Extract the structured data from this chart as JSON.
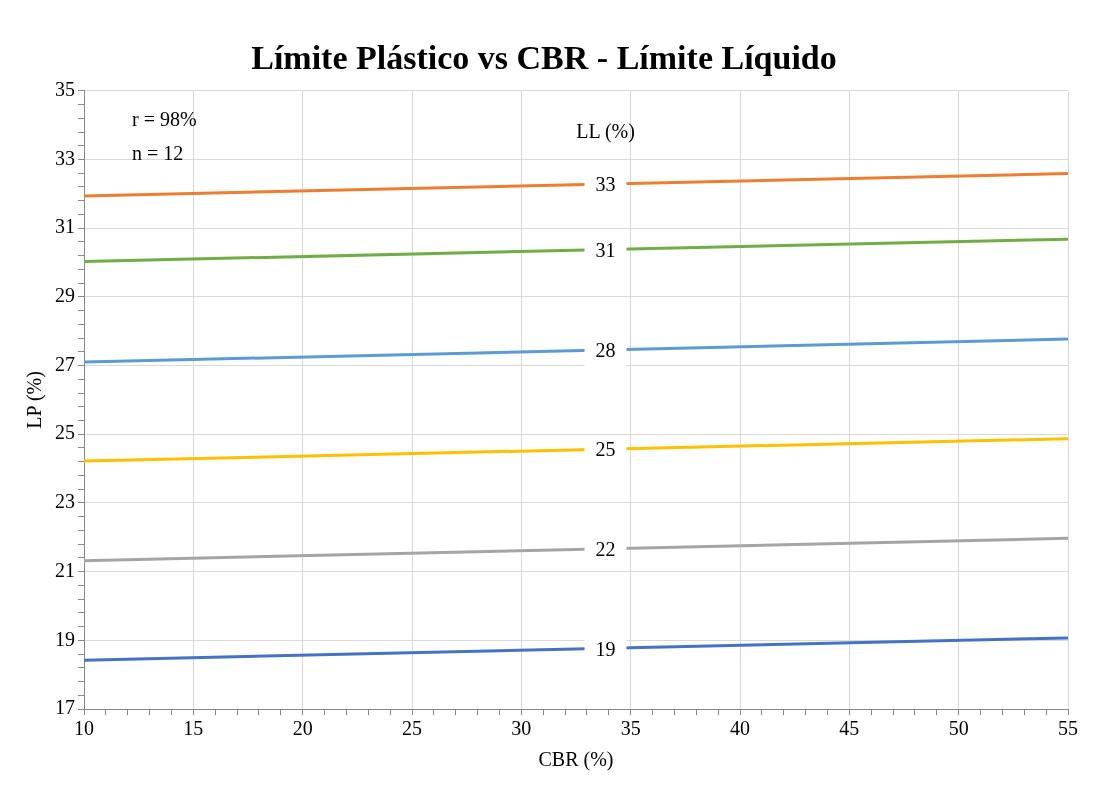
{
  "chart_data": {
    "type": "line",
    "title": "Límite Plástico vs CBR - Límite Líquido",
    "xlabel": "CBR (%)",
    "ylabel": "LP (%)",
    "legend_title": "LL (%)",
    "annotations": [
      "r = 98%",
      "n = 12"
    ],
    "x": [
      10,
      55
    ],
    "series": [
      {
        "name": "33",
        "color": "#ed7d31",
        "values": [
          31.94,
          32.59
        ]
      },
      {
        "name": "31",
        "color": "#70ad47",
        "values": [
          30.03,
          30.68
        ]
      },
      {
        "name": "28",
        "color": "#5b9bd5",
        "values": [
          27.1,
          27.77
        ]
      },
      {
        "name": "25",
        "color": "#ffc000",
        "values": [
          24.22,
          24.87
        ]
      },
      {
        "name": "22",
        "color": "#a5a5a5",
        "values": [
          21.32,
          21.97
        ]
      },
      {
        "name": "19",
        "color": "#4472c4",
        "values": [
          18.42,
          19.07
        ]
      }
    ],
    "xlim": [
      10,
      55
    ],
    "ylim": [
      17,
      35
    ],
    "xticks": [
      10,
      {
        "value": 11,
        "label": null
      },
      {
        "value": 12,
        "label": null
      },
      {
        "value": 13,
        "label": null
      },
      {
        "value": 14,
        "label": null
      },
      15,
      {
        "value": 16,
        "label": null
      },
      {
        "value": 17,
        "label": null
      },
      {
        "value": 18,
        "label": null
      },
      {
        "value": 19,
        "label": null
      },
      20,
      {
        "value": 21,
        "label": null
      },
      {
        "value": 22,
        "label": null
      },
      {
        "value": 23,
        "label": null
      },
      {
        "value": 24,
        "label": null
      },
      25,
      {
        "value": 26,
        "label": null
      },
      {
        "value": 27,
        "label": null
      },
      {
        "value": 28,
        "label": null
      },
      {
        "value": 29,
        "label": null
      },
      30,
      {
        "value": 31,
        "label": null
      },
      {
        "value": 32,
        "label": null
      },
      {
        "value": 33,
        "label": null
      },
      {
        "value": 34,
        "label": null
      },
      35,
      {
        "value": 36,
        "label": null
      },
      {
        "value": 37,
        "label": null
      },
      {
        "value": 38,
        "label": null
      },
      {
        "value": 39,
        "label": null
      },
      40,
      {
        "value": 41,
        "label": null
      },
      {
        "value": 42,
        "label": null
      },
      {
        "value": 43,
        "label": null
      },
      {
        "value": 44,
        "label": null
      },
      45,
      {
        "value": 46,
        "label": null
      },
      {
        "value": 47,
        "label": null
      },
      {
        "value": 48,
        "label": null
      },
      {
        "value": 49,
        "label": null
      },
      50,
      {
        "value": 51,
        "label": null
      },
      {
        "value": 52,
        "label": null
      },
      {
        "value": 53,
        "label": null
      },
      {
        "value": 54,
        "label": null
      },
      55
    ],
    "yticks": [
      17,
      {
        "value": 17.4,
        "label": null
      },
      {
        "value": 17.8,
        "label": null
      },
      {
        "value": 18.2,
        "label": null
      },
      {
        "value": 18.6,
        "label": null
      },
      19,
      {
        "value": 19.4,
        "label": null
      },
      {
        "value": 19.8,
        "label": null
      },
      {
        "value": 20.2,
        "label": null
      },
      {
        "value": 20.6,
        "label": null
      },
      21,
      {
        "value": 21.4,
        "label": null
      },
      {
        "value": 21.8,
        "label": null
      },
      {
        "value": 22.2,
        "label": null
      },
      {
        "value": 22.6,
        "label": null
      },
      23,
      {
        "value": 23.4,
        "label": null
      },
      {
        "value": 23.8,
        "label": null
      },
      {
        "value": 24.2,
        "label": null
      },
      {
        "value": 24.6,
        "label": null
      },
      25,
      {
        "value": 25.4,
        "label": null
      },
      {
        "value": 25.8,
        "label": null
      },
      {
        "value": 26.2,
        "label": null
      },
      {
        "value": 26.6,
        "label": null
      },
      27,
      {
        "value": 27.4,
        "label": null
      },
      {
        "value": 27.8,
        "label": null
      },
      {
        "value": 28.2,
        "label": null
      },
      {
        "value": 28.6,
        "label": null
      },
      29,
      {
        "value": 29.4,
        "label": null
      },
      {
        "value": 29.8,
        "label": null
      },
      {
        "value": 30.2,
        "label": null
      },
      {
        "value": 30.6,
        "label": null
      },
      31,
      {
        "value": 31.4,
        "label": null
      },
      {
        "value": 31.8,
        "label": null
      },
      {
        "value": 32.2,
        "label": null
      },
      {
        "value": 32.6,
        "label": null
      },
      33,
      {
        "value": 33.4,
        "label": null
      },
      {
        "value": 33.8,
        "label": null
      },
      {
        "value": 34.2,
        "label": null
      },
      {
        "value": 34.6,
        "label": null
      },
      35
    ],
    "grid": true,
    "legend": false,
    "marker": "none",
    "line_style": "solid"
  }
}
